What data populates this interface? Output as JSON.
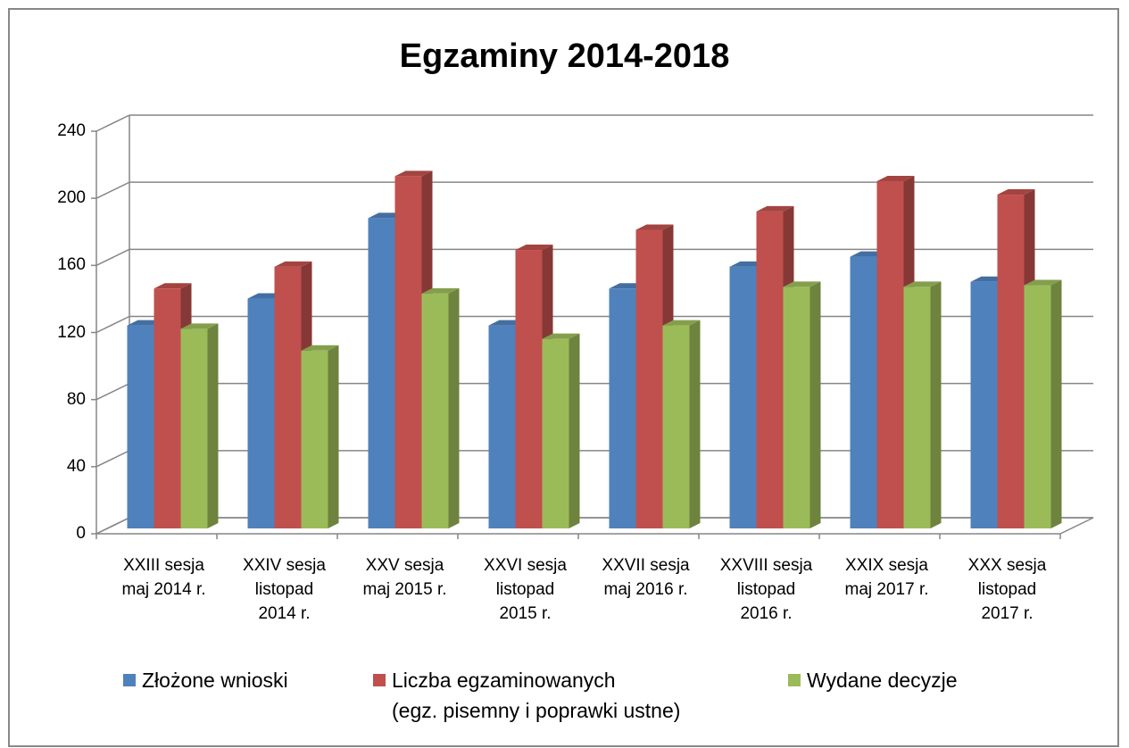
{
  "chart_data": {
    "type": "bar3d",
    "title": "Egzaminy 2014-2018",
    "categories": [
      "XXIII sesja\nmaj 2014 r.",
      "XXIV sesja\nlistopad\n2014 r.",
      "XXV sesja\nmaj 2015 r.",
      "XXVI sesja\nlistopad\n2015 r.",
      "XXVII sesja\nmaj 2016 r.",
      "XXVIII sesja\nlistopad\n2016 r.",
      "XXIX sesja\nmaj 2017 r.",
      "XXX sesja\nlistopad\n2017 r."
    ],
    "series": [
      {
        "name": "Złożone wnioski",
        "color": "#4f81bd",
        "values": [
          121,
          137,
          185,
          121,
          143,
          156,
          162,
          147
        ]
      },
      {
        "name": "Liczba egzaminowanych\n(egz. pisemny i poprawki ustne)",
        "color": "#c0504d",
        "values": [
          143,
          156,
          210,
          166,
          178,
          189,
          207,
          199
        ]
      },
      {
        "name": "Wydane decyzje",
        "color": "#9bbb59",
        "values": [
          119,
          106,
          140,
          113,
          121,
          144,
          144,
          145
        ]
      }
    ],
    "ylim": [
      0,
      240
    ],
    "yticks": [
      0,
      40,
      80,
      120,
      160,
      200,
      240
    ],
    "grid": true,
    "legend": "bottom"
  }
}
